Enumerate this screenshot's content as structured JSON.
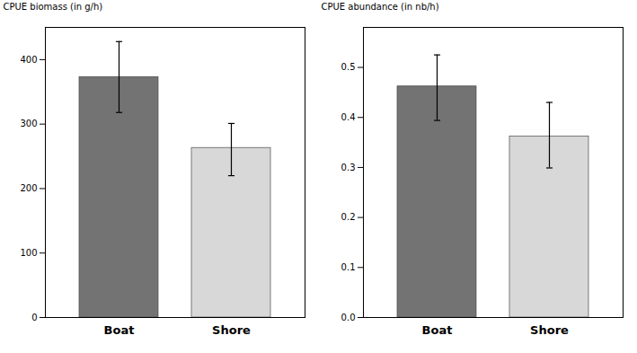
{
  "chart_data": [
    {
      "type": "bar",
      "ylabel": "CPUE biomass (in g/h)",
      "categories": [
        "Boat",
        "Shore"
      ],
      "values": [
        373,
        263
      ],
      "errors_upper": [
        55,
        38
      ],
      "errors_lower": [
        55,
        43
      ],
      "colors": [
        "#737373",
        "#d8d8d8"
      ],
      "ylim": [
        0,
        450
      ],
      "yticks": [
        0,
        100,
        200,
        300,
        400
      ]
    },
    {
      "type": "bar",
      "ylabel": "CPUE abundance (in nb/h)",
      "categories": [
        "Boat",
        "Shore"
      ],
      "values": [
        0.462,
        0.362
      ],
      "errors_upper": [
        0.063,
        0.068
      ],
      "errors_lower": [
        0.068,
        0.063
      ],
      "colors": [
        "#737373",
        "#d8d8d8"
      ],
      "ylim": [
        0,
        0.58
      ],
      "yticks": [
        {
          "value": 0,
          "label": "0.0"
        },
        0.1,
        0.2,
        0.3,
        0.4,
        0.5
      ]
    }
  ]
}
